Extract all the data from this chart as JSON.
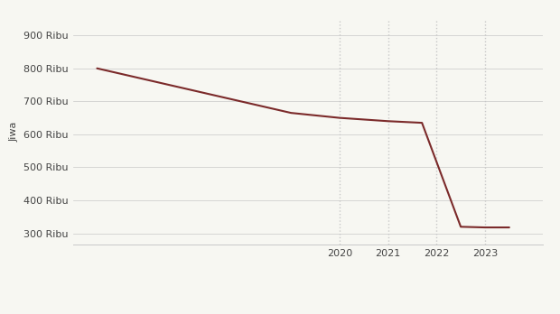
{
  "ylabel": "Jiwa",
  "line_color": "#7B2A2A",
  "line_width": 1.5,
  "background_color": "#f7f7f2",
  "x_values": [
    2015,
    2019,
    2020,
    2021,
    2021.7,
    2022.5,
    2023,
    2023.5
  ],
  "y_values": [
    800000,
    665000,
    650000,
    640000,
    635000,
    320000,
    318000,
    318000
  ],
  "ylim": [
    265000,
    950000
  ],
  "yticks": [
    300000,
    400000,
    500000,
    600000,
    700000,
    800000,
    900000
  ],
  "ytick_labels": [
    "300 Ribu",
    "400 Ribu",
    "500 Ribu",
    "600 Ribu",
    "700 Ribu",
    "800 Ribu",
    "900 Ribu"
  ],
  "xticks": [
    2020,
    2021,
    2022,
    2023
  ],
  "xlim": [
    2014.5,
    2024.2
  ],
  "grid_xticks": [
    2020,
    2021,
    2022,
    2023
  ],
  "grid_color": "#c8c8c8",
  "grid_style": ":",
  "font_color": "#444444",
  "font_size": 8.0,
  "tick_font_size": 8.0
}
